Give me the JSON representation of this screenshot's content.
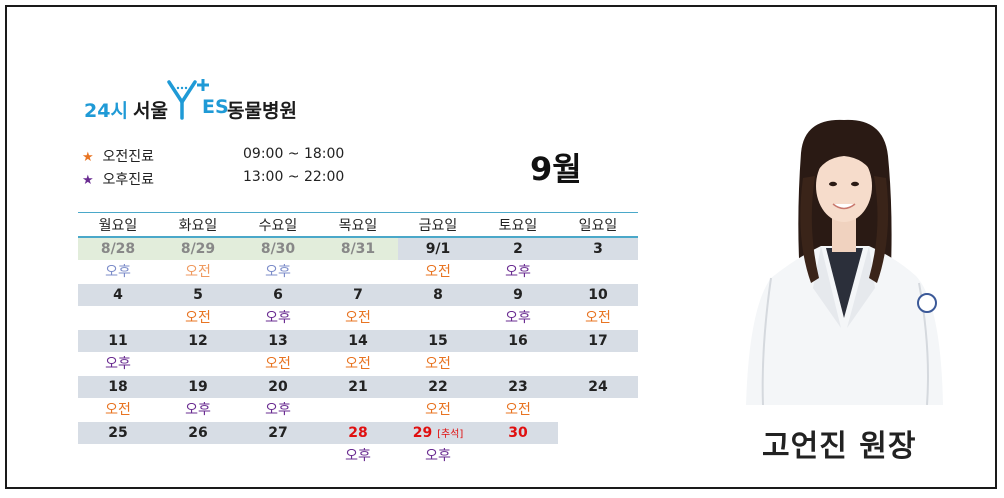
{
  "logo": {
    "prefix": "24시",
    "city": "서울",
    "es": "ES",
    "name": "동물병원"
  },
  "legend": [
    {
      "star": "★",
      "star_color": "#e87422",
      "label": "오전진료",
      "time": "09:00 ~ 18:00"
    },
    {
      "star": "★",
      "star_color": "#6a2c91",
      "label": "오후진료",
      "time": "13:00 ~ 22:00"
    }
  ],
  "month": "9월",
  "calendar": {
    "weekdays": [
      "월요일",
      "화요일",
      "수요일",
      "목요일",
      "금요일",
      "토요일",
      "일요일"
    ],
    "weeks": [
      {
        "days": [
          {
            "date": "8/28",
            "type": "prev",
            "session": "오후",
            "sess": "pm"
          },
          {
            "date": "8/29",
            "type": "prev",
            "session": "오전",
            "sess": "am"
          },
          {
            "date": "8/30",
            "type": "prev",
            "session": "오후",
            "sess": "pm"
          },
          {
            "date": "8/31",
            "type": "prev",
            "session": "",
            "sess": ""
          },
          {
            "date": "9/1",
            "type": "cur",
            "session": "오전",
            "sess": "am"
          },
          {
            "date": "2",
            "type": "cur",
            "session": "오후",
            "sess": "pm"
          },
          {
            "date": "3",
            "type": "cur",
            "session": "",
            "sess": ""
          }
        ]
      },
      {
        "days": [
          {
            "date": "4",
            "type": "cur",
            "session": "",
            "sess": ""
          },
          {
            "date": "5",
            "type": "cur",
            "session": "오전",
            "sess": "am"
          },
          {
            "date": "6",
            "type": "cur",
            "session": "오후",
            "sess": "pm"
          },
          {
            "date": "7",
            "type": "cur",
            "session": "오전",
            "sess": "am"
          },
          {
            "date": "8",
            "type": "cur",
            "session": "",
            "sess": ""
          },
          {
            "date": "9",
            "type": "cur",
            "session": "오후",
            "sess": "pm"
          },
          {
            "date": "10",
            "type": "cur",
            "session": "오전",
            "sess": "am"
          }
        ]
      },
      {
        "days": [
          {
            "date": "11",
            "type": "cur",
            "session": "오후",
            "sess": "pm"
          },
          {
            "date": "12",
            "type": "cur",
            "session": "",
            "sess": ""
          },
          {
            "date": "13",
            "type": "cur",
            "session": "오전",
            "sess": "am"
          },
          {
            "date": "14",
            "type": "cur",
            "session": "오전",
            "sess": "am"
          },
          {
            "date": "15",
            "type": "cur",
            "session": "오전",
            "sess": "am"
          },
          {
            "date": "16",
            "type": "cur",
            "session": "",
            "sess": ""
          },
          {
            "date": "17",
            "type": "cur",
            "session": "",
            "sess": ""
          }
        ]
      },
      {
        "days": [
          {
            "date": "18",
            "type": "cur",
            "session": "오전",
            "sess": "am"
          },
          {
            "date": "19",
            "type": "cur",
            "session": "오후",
            "sess": "pm"
          },
          {
            "date": "20",
            "type": "cur",
            "session": "오후",
            "sess": "pm"
          },
          {
            "date": "21",
            "type": "cur",
            "session": "",
            "sess": ""
          },
          {
            "date": "22",
            "type": "cur",
            "session": "오전",
            "sess": "am"
          },
          {
            "date": "23",
            "type": "cur",
            "session": "오전",
            "sess": "am"
          },
          {
            "date": "24",
            "type": "cur",
            "session": "",
            "sess": ""
          }
        ]
      },
      {
        "days": [
          {
            "date": "25",
            "type": "cur",
            "session": "",
            "sess": ""
          },
          {
            "date": "26",
            "type": "cur",
            "session": "",
            "sess": ""
          },
          {
            "date": "27",
            "type": "cur",
            "session": "",
            "sess": ""
          },
          {
            "date": "28",
            "type": "holiday",
            "session": "오후",
            "sess": "pm"
          },
          {
            "date": "29",
            "note": "[추석]",
            "type": "holiday",
            "session": "오후",
            "sess": "pm"
          },
          {
            "date": "30",
            "type": "holiday",
            "session": "",
            "sess": ""
          }
        ]
      }
    ]
  },
  "doctor": {
    "name": "고언진 원장"
  },
  "colors": {
    "am": "#e87422",
    "pm": "#6a2c91",
    "holiday": "#e01010",
    "accent": "#1f9ad6"
  }
}
